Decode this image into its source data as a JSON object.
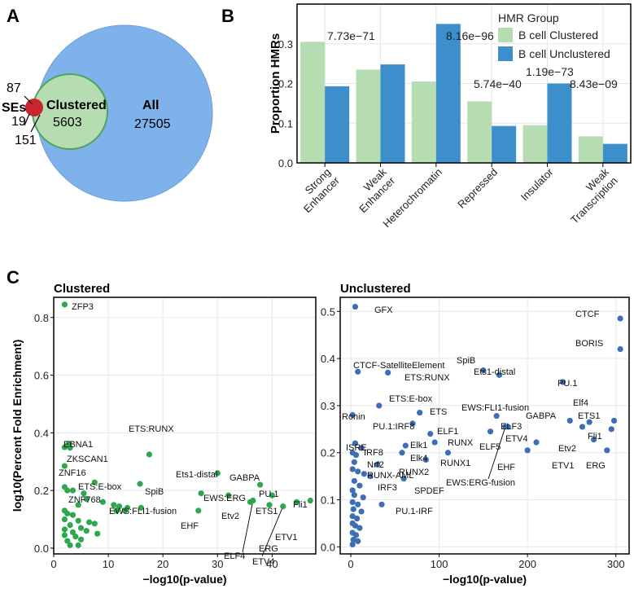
{
  "panels": {
    "a": "A",
    "b": "B",
    "c": "C"
  },
  "venn": {
    "ses_label": "SEs",
    "ses_count_top": "87",
    "ses_count_mid": "19",
    "ses_count_bottom": "151",
    "clustered_label": "Clustered",
    "clustered_count": "5603",
    "all_label": "All",
    "all_count": "27505",
    "colors": {
      "all": "#7fb2ea",
      "clustered": "#b6ddb2",
      "ses": "#c9252c"
    }
  },
  "chart_data": [
    {
      "type": "bar",
      "id": "hmr_proportions",
      "ylabel": "Proportion HMRs",
      "ylim": [
        0,
        0.4
      ],
      "yticks": [
        "0.0",
        "0.1",
        "0.2",
        "0.3"
      ],
      "yticks_values": [
        0,
        0.1,
        0.2,
        0.3
      ],
      "categories": [
        "Strong\nEnhancer",
        "Weak\nEnhancer",
        "Heterochromatin",
        "Repressed",
        "Insulator",
        "Weak\nTranscription"
      ],
      "series": [
        {
          "name": "B cell Clustered",
          "color": "#b6ddb2",
          "values": [
            0.305,
            0.235,
            0.205,
            0.155,
            0.095,
            0.067
          ]
        },
        {
          "name": "B cell Unclustered",
          "color": "#3d8fcc",
          "values": [
            0.193,
            0.248,
            0.35,
            0.093,
            0.2,
            0.048
          ]
        }
      ],
      "legend": {
        "title": "HMR Group",
        "position": "top-right"
      },
      "pvalues": [
        "7.73e−71",
        "8.16e−96",
        "5.74e−40",
        "1.19e−73",
        "8.43e−09"
      ]
    },
    {
      "type": "scatter",
      "id": "clustered",
      "title": "Clustered",
      "color": "#2ea84f",
      "xlabel": "−log10(p-value)",
      "ylabel": "log10(Percent Fold Enrichment)",
      "xlim": [
        0,
        48
      ],
      "ylim": [
        -0.02,
        0.87
      ],
      "xticks": [
        0,
        10,
        20,
        30,
        40
      ],
      "yticks": [
        "0.0",
        "0.2",
        "0.4",
        "0.6",
        "0.8"
      ],
      "yticks_values": [
        0,
        0.2,
        0.4,
        0.6,
        0.8
      ],
      "points": [
        {
          "x": 2.0,
          "y": 0.845,
          "label": "ZFP3"
        },
        {
          "x": 2.8,
          "y": 0.362,
          "label": "EBNA1"
        },
        {
          "x": 2.0,
          "y": 0.35,
          "label": "ZKSCAN1"
        },
        {
          "x": 3.0,
          "y": 0.348
        },
        {
          "x": 17.5,
          "y": 0.325,
          "label": "ETS:RUNX"
        },
        {
          "x": 2.0,
          "y": 0.285,
          "label": "ZNF16"
        },
        {
          "x": 30.0,
          "y": 0.26,
          "label": "Ets1-distal"
        },
        {
          "x": 7.5,
          "y": 0.228,
          "label": "ETS:E-box"
        },
        {
          "x": 15.8,
          "y": 0.223,
          "label": "SpiB"
        },
        {
          "x": 2.0,
          "y": 0.212,
          "label": "ZNF768"
        },
        {
          "x": 37.8,
          "y": 0.22,
          "label": "PU.1"
        },
        {
          "x": 32.0,
          "y": 0.183,
          "label": "EWS:ERG"
        },
        {
          "x": 40.0,
          "y": 0.183,
          "label": "ETS1"
        },
        {
          "x": 27.0,
          "y": 0.19,
          "label": "GABPA"
        },
        {
          "x": 9.0,
          "y": 0.16,
          "label": "EWS:FLI1-fusion"
        },
        {
          "x": 36.0,
          "y": 0.16,
          "label": "Etv2"
        },
        {
          "x": 36.5,
          "y": 0.165,
          "label": "ELF4"
        },
        {
          "x": 39.5,
          "y": 0.15,
          "label": "ERG"
        },
        {
          "x": 42.0,
          "y": 0.145,
          "label": "ETV4"
        },
        {
          "x": 47.0,
          "y": 0.165,
          "label": "Fli1"
        },
        {
          "x": 44.5,
          "y": 0.16,
          "label": "ETV1"
        },
        {
          "x": 26.5,
          "y": 0.13,
          "label": "EHF"
        },
        {
          "x": 2.5,
          "y": 0.2
        },
        {
          "x": 3.5,
          "y": 0.2
        },
        {
          "x": 5.5,
          "y": 0.19
        },
        {
          "x": 6.0,
          "y": 0.17
        },
        {
          "x": 4.5,
          "y": 0.15
        },
        {
          "x": 11.0,
          "y": 0.15
        },
        {
          "x": 12.0,
          "y": 0.145
        },
        {
          "x": 13.5,
          "y": 0.14
        },
        {
          "x": 16.0,
          "y": 0.14
        },
        {
          "x": 11.5,
          "y": 0.13
        },
        {
          "x": 13.0,
          "y": 0.13
        },
        {
          "x": 2.0,
          "y": 0.13
        },
        {
          "x": 2.5,
          "y": 0.12
        },
        {
          "x": 3.5,
          "y": 0.115
        },
        {
          "x": 2.0,
          "y": 0.1
        },
        {
          "x": 4.5,
          "y": 0.095
        },
        {
          "x": 6.5,
          "y": 0.09
        },
        {
          "x": 7.5,
          "y": 0.085
        },
        {
          "x": 3.0,
          "y": 0.08
        },
        {
          "x": 5.0,
          "y": 0.07
        },
        {
          "x": 2.0,
          "y": 0.065
        },
        {
          "x": 3.5,
          "y": 0.055
        },
        {
          "x": 6.0,
          "y": 0.06
        },
        {
          "x": 8.0,
          "y": 0.05
        },
        {
          "x": 2.0,
          "y": 0.045
        },
        {
          "x": 4.0,
          "y": 0.04
        },
        {
          "x": 2.5,
          "y": 0.025
        },
        {
          "x": 5.0,
          "y": 0.03
        },
        {
          "x": 3.0,
          "y": 0.01
        },
        {
          "x": 4.5,
          "y": 0.01
        }
      ]
    },
    {
      "type": "scatter",
      "id": "unclustered",
      "title": "Unclustered",
      "color": "#3c6fb4",
      "xlabel": "−log10(p-value)",
      "ylabel": "",
      "xlim": [
        -12,
        315
      ],
      "ylim": [
        -0.015,
        0.53
      ],
      "xticks": [
        0,
        100,
        200,
        300
      ],
      "yticks": [
        "0.0",
        "0.1",
        "0.2",
        "0.3",
        "0.4",
        "0.5"
      ],
      "yticks_values": [
        0,
        0.1,
        0.2,
        0.3,
        0.4,
        0.5
      ],
      "points": [
        {
          "x": 5,
          "y": 0.51,
          "label": "GFX"
        },
        {
          "x": 305,
          "y": 0.485,
          "label": "CTCF"
        },
        {
          "x": 305,
          "y": 0.42,
          "label": "BORIS"
        },
        {
          "x": 8,
          "y": 0.372,
          "label": "CTCF-SatelliteElement"
        },
        {
          "x": 150,
          "y": 0.375,
          "label": "SpiB"
        },
        {
          "x": 42,
          "y": 0.37,
          "label": "ETS:RUNX"
        },
        {
          "x": 168,
          "y": 0.365,
          "label": "Ets1-distal"
        },
        {
          "x": 240,
          "y": 0.35,
          "label": "PU.1"
        },
        {
          "x": 32,
          "y": 0.3,
          "label": "ETS:E-box"
        },
        {
          "x": 78,
          "y": 0.285,
          "label": "ETS"
        },
        {
          "x": 2,
          "y": 0.28,
          "label": "Ronin"
        },
        {
          "x": 165,
          "y": 0.278,
          "label": "EWS:FLI1-fusion"
        },
        {
          "x": 70,
          "y": 0.262,
          "label": "PU.1:IRF8"
        },
        {
          "x": 270,
          "y": 0.265,
          "label": "Elf4"
        },
        {
          "x": 298,
          "y": 0.268,
          "label": "ETS1"
        },
        {
          "x": 248,
          "y": 0.268,
          "label": "GABPA"
        },
        {
          "x": 178,
          "y": 0.255,
          "label": "ELF3"
        },
        {
          "x": 295,
          "y": 0.25,
          "label": "Fli1"
        },
        {
          "x": 90,
          "y": 0.24,
          "label": "ELF1"
        },
        {
          "x": 158,
          "y": 0.245,
          "label": "ELF5"
        },
        {
          "x": 262,
          "y": 0.255,
          "label": "Etv2"
        },
        {
          "x": 95,
          "y": 0.222,
          "label": "RUNX"
        },
        {
          "x": 210,
          "y": 0.222,
          "label": "ETV4"
        },
        {
          "x": 275,
          "y": 0.228,
          "label": "ETV1"
        },
        {
          "x": 5,
          "y": 0.22,
          "label": "ISRE"
        },
        {
          "x": 62,
          "y": 0.215,
          "label": "Elk1"
        },
        {
          "x": 12,
          "y": 0.21,
          "label": "IRF8"
        },
        {
          "x": 58,
          "y": 0.2,
          "label": "Elk4"
        },
        {
          "x": 110,
          "y": 0.2,
          "label": "RUNX1"
        },
        {
          "x": 200,
          "y": 0.205,
          "label": "EHF"
        },
        {
          "x": 290,
          "y": 0.205,
          "label": "ERG"
        },
        {
          "x": 4,
          "y": 0.18,
          "label": "Nrf2"
        },
        {
          "x": 30,
          "y": 0.175,
          "label": "RUNX-AML"
        },
        {
          "x": 85,
          "y": 0.185,
          "label": "RUNX2"
        },
        {
          "x": 22,
          "y": 0.15,
          "label": "IRF3"
        },
        {
          "x": 60,
          "y": 0.145,
          "label": "SPDEF"
        },
        {
          "x": 175,
          "y": 0.255,
          "label": "EWS:ERG-fusion"
        },
        {
          "x": 35,
          "y": 0.09,
          "label": "PU.1-IRF"
        },
        {
          "x": 2,
          "y": 0.2
        },
        {
          "x": 6,
          "y": 0.195
        },
        {
          "x": 2,
          "y": 0.165
        },
        {
          "x": 8,
          "y": 0.16
        },
        {
          "x": 15,
          "y": 0.155
        },
        {
          "x": 4,
          "y": 0.14
        },
        {
          "x": 2,
          "y": 0.12
        },
        {
          "x": 10,
          "y": 0.13
        },
        {
          "x": 4,
          "y": 0.11
        },
        {
          "x": 14,
          "y": 0.105
        },
        {
          "x": 2,
          "y": 0.095
        },
        {
          "x": 8,
          "y": 0.09
        },
        {
          "x": 3,
          "y": 0.08
        },
        {
          "x": 12,
          "y": 0.075
        },
        {
          "x": 2,
          "y": 0.065
        },
        {
          "x": 7,
          "y": 0.06
        },
        {
          "x": 2,
          "y": 0.05
        },
        {
          "x": 5,
          "y": 0.045
        },
        {
          "x": 10,
          "y": 0.04
        },
        {
          "x": 2,
          "y": 0.03
        },
        {
          "x": 6,
          "y": 0.025
        },
        {
          "x": 3,
          "y": 0.015
        },
        {
          "x": 8,
          "y": 0.012
        },
        {
          "x": 2,
          "y": 0.005
        }
      ]
    }
  ]
}
